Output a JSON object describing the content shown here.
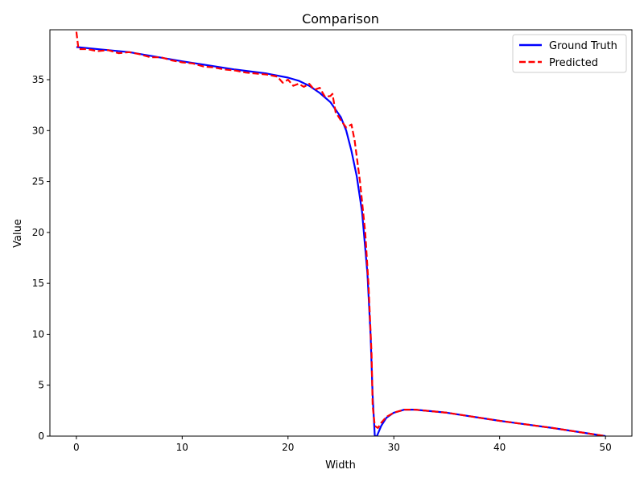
{
  "chart_data": {
    "type": "line",
    "title": "Comparison",
    "xlabel": "Width",
    "ylabel": "Value",
    "xlim": [
      -2.5,
      52.5
    ],
    "ylim": [
      0,
      39.9
    ],
    "xticks": [
      0,
      10,
      20,
      30,
      40,
      50
    ],
    "yticks": [
      0,
      5,
      10,
      15,
      20,
      25,
      30,
      35
    ],
    "grid": false,
    "legend_position": "top-right",
    "series": [
      {
        "name": "Ground Truth",
        "color": "#0000ff",
        "style": "solid",
        "x": [
          0,
          5,
          10,
          15,
          18,
          20,
          21,
          22,
          23,
          24,
          25,
          25.5,
          26,
          26.5,
          27,
          27.5,
          27.8,
          28.0,
          28.2,
          28.4,
          28.8,
          29.3,
          30,
          31,
          32,
          35,
          40,
          45,
          50
        ],
        "y": [
          38.2,
          37.7,
          36.8,
          36.0,
          35.6,
          35.2,
          34.9,
          34.4,
          33.7,
          32.8,
          31.3,
          30.0,
          28.0,
          25.5,
          22.0,
          16.0,
          10.0,
          4.0,
          0.0,
          0.0,
          1.0,
          1.8,
          2.3,
          2.6,
          2.6,
          2.3,
          1.5,
          0.8,
          0.0
        ]
      },
      {
        "name": "Predicted",
        "color": "#ff0000",
        "style": "dashed",
        "x": [
          0,
          0.2,
          1,
          2,
          3,
          4,
          5,
          6,
          7,
          8,
          9,
          10,
          11,
          12,
          13,
          14,
          15,
          16,
          17,
          18,
          19,
          19.5,
          20,
          20.5,
          21,
          21.5,
          22,
          22.5,
          23,
          23.5,
          24,
          24.2,
          24.5,
          25,
          25.5,
          26,
          26.3,
          26.8,
          27.3,
          27.6,
          27.9,
          28.0,
          28.2,
          28.5,
          28.8,
          29.3,
          30,
          31,
          32,
          35,
          40,
          45,
          50
        ],
        "y": [
          39.7,
          38.0,
          38.0,
          37.8,
          37.9,
          37.6,
          37.7,
          37.5,
          37.2,
          37.2,
          36.9,
          36.7,
          36.6,
          36.3,
          36.2,
          36.0,
          35.9,
          35.7,
          35.6,
          35.5,
          35.3,
          34.7,
          35.0,
          34.4,
          34.6,
          34.3,
          34.6,
          34.0,
          34.2,
          33.3,
          33.4,
          33.6,
          31.8,
          31.0,
          30.3,
          30.6,
          29.0,
          25.0,
          20.0,
          15.0,
          8.0,
          3.0,
          1.0,
          0.8,
          1.3,
          1.9,
          2.3,
          2.6,
          2.6,
          2.3,
          1.5,
          0.8,
          0.0
        ]
      }
    ]
  }
}
